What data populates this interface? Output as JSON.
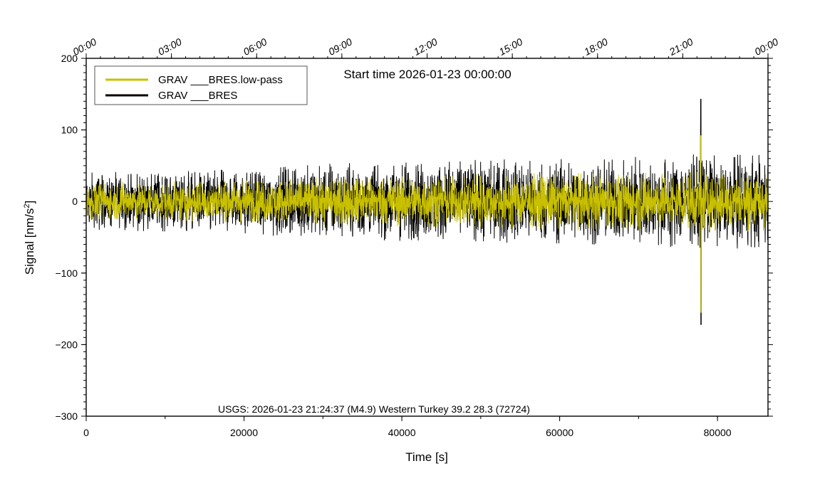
{
  "chart_data": {
    "type": "line",
    "title": "",
    "annotation": "Start time 2026-01-23 00:00:00",
    "event_note": "USGS: 2026-01-23 21:24:37 (M4.9) Western Turkey 39.2 28.3 (72724)",
    "xlabel": "Time [s]",
    "ylabel": "Signal [nm/s²]",
    "ylabel_base": "Signal [nm/s",
    "ylabel_sup": "2",
    "ylabel_tail": "]",
    "xlim": [
      0,
      86400
    ],
    "ylim": [
      -300,
      200
    ],
    "x_ticks": [
      0,
      20000,
      40000,
      60000,
      80000
    ],
    "x_tick_labels": [
      "0",
      "20000",
      "40000",
      "60000",
      "80000"
    ],
    "y_ticks": [
      -300,
      -200,
      -100,
      0,
      100,
      200
    ],
    "y_tick_labels": [
      "−300",
      "−200",
      "−100",
      "0",
      "100",
      "200"
    ],
    "top_axis": {
      "ticks": [
        0,
        10800,
        21600,
        32400,
        43200,
        54000,
        64800,
        75600,
        86400
      ],
      "labels": [
        "00:00",
        "03:00",
        "06:00",
        "09:00",
        "12:00",
        "15:00",
        "18:00",
        "21:00",
        "00:00"
      ]
    },
    "legend": {
      "position": "top-left"
    },
    "series": [
      {
        "name": "GRAV ___BRES",
        "color": "#000000",
        "envelope": {
          "x": [
            0,
            10000,
            20000,
            30000,
            40000,
            50000,
            60000,
            70000,
            78000,
            86400
          ],
          "upper": [
            40,
            42,
            45,
            52,
            56,
            58,
            60,
            62,
            66,
            66
          ],
          "lower": [
            -40,
            -42,
            -45,
            -52,
            -56,
            -58,
            -60,
            -62,
            -66,
            -66
          ]
        },
        "event": {
          "x": 77900,
          "max": 143,
          "min": -172
        }
      },
      {
        "name": "GRAV ___BRES.low-pass",
        "color": "#c8c000",
        "envelope": {
          "x": [
            0,
            10000,
            20000,
            30000,
            40000,
            50000,
            60000,
            70000,
            78000,
            86400
          ],
          "upper": [
            26,
            28,
            30,
            34,
            36,
            38,
            40,
            40,
            42,
            42
          ],
          "lower": [
            -26,
            -28,
            -30,
            -34,
            -36,
            -38,
            -40,
            -40,
            -42,
            -42
          ]
        },
        "event": {
          "x": 77900,
          "max": 92,
          "min": -155
        }
      }
    ]
  }
}
